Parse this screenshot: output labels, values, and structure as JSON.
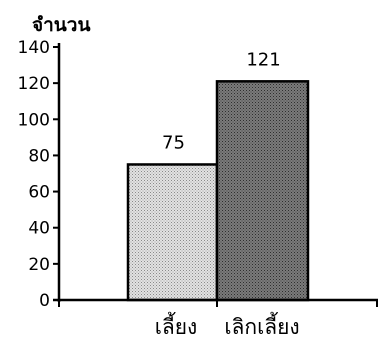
{
  "chart_data": {
    "type": "bar",
    "title": "",
    "xlabel": "",
    "ylabel": "จำนวน",
    "categories": [
      "เลี้ยง",
      "เลิกเลี้ยง"
    ],
    "values": [
      75,
      121
    ],
    "data_labels": [
      "75",
      "121"
    ],
    "ylim": [
      0,
      140
    ],
    "yticks": [
      0,
      20,
      40,
      60,
      80,
      100,
      120,
      140
    ],
    "grid": false,
    "legend": "none",
    "colors": [
      "#c8c8c8",
      "#6a6a6a"
    ]
  }
}
